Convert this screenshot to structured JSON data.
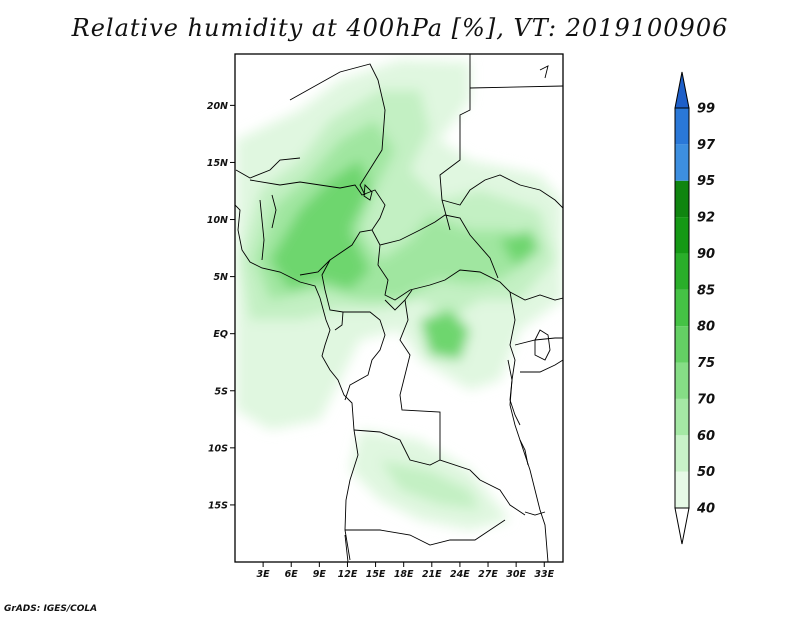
{
  "title": "Relative humidity at 400hPa [%], VT: 2019100906",
  "credit": "GrADS: IGES/COLA",
  "chart_data": {
    "type": "heatmap",
    "title": "Relative humidity at 400hPa [%], VT: 2019100906",
    "xlabel": "",
    "ylabel": "",
    "xlim": [
      0,
      35
    ],
    "ylim": [
      -20,
      24.5
    ],
    "x_ticks": [
      "3E",
      "6E",
      "9E",
      "12E",
      "15E",
      "18E",
      "21E",
      "24E",
      "27E",
      "30E",
      "33E"
    ],
    "x_tick_values": [
      3,
      6,
      9,
      12,
      15,
      18,
      21,
      24,
      27,
      30,
      33
    ],
    "y_ticks": [
      "20N",
      "15N",
      "10N",
      "5N",
      "EQ",
      "5S",
      "10S",
      "15S"
    ],
    "y_tick_values": [
      20,
      15,
      10,
      5,
      0,
      -5,
      -10,
      -15
    ],
    "colorbar": {
      "levels": [
        "40",
        "50",
        "60",
        "70",
        "75",
        "80",
        "85",
        "90",
        "92",
        "95",
        "97",
        "99"
      ],
      "colors": [
        "#ffffff",
        "#e6f9e6",
        "#c8f2c8",
        "#a5e8a5",
        "#86dd86",
        "#64d064",
        "#45c245",
        "#2aae2a",
        "#159915",
        "#108510",
        "#3d8fe0",
        "#2a78d8",
        "#1e5fc8"
      ]
    }
  }
}
